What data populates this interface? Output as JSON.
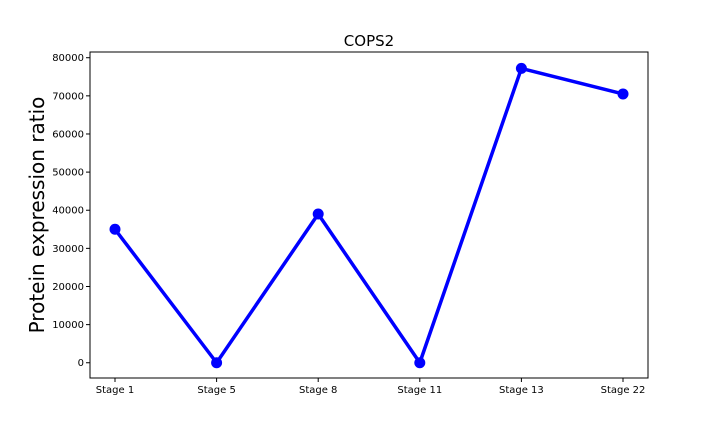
{
  "chart_data": {
    "type": "line",
    "title": "COPS2",
    "xlabel": "",
    "ylabel": "Protein expression ratio",
    "categories": [
      "Stage 1",
      "Stage 5",
      "Stage 8",
      "Stage 11",
      "Stage 13",
      "Stage 22"
    ],
    "series": [
      {
        "values": [
          35000,
          0,
          39000,
          0,
          77200,
          70500
        ]
      }
    ],
    "ylim": [
      -4000,
      81500
    ],
    "yticks": [
      0,
      10000,
      20000,
      30000,
      40000,
      50000,
      60000,
      70000,
      80000
    ],
    "grid": false,
    "legend": "none",
    "colors": {
      "line": "#0000ff",
      "marker": "#0000ff",
      "axes": "#000000"
    }
  }
}
